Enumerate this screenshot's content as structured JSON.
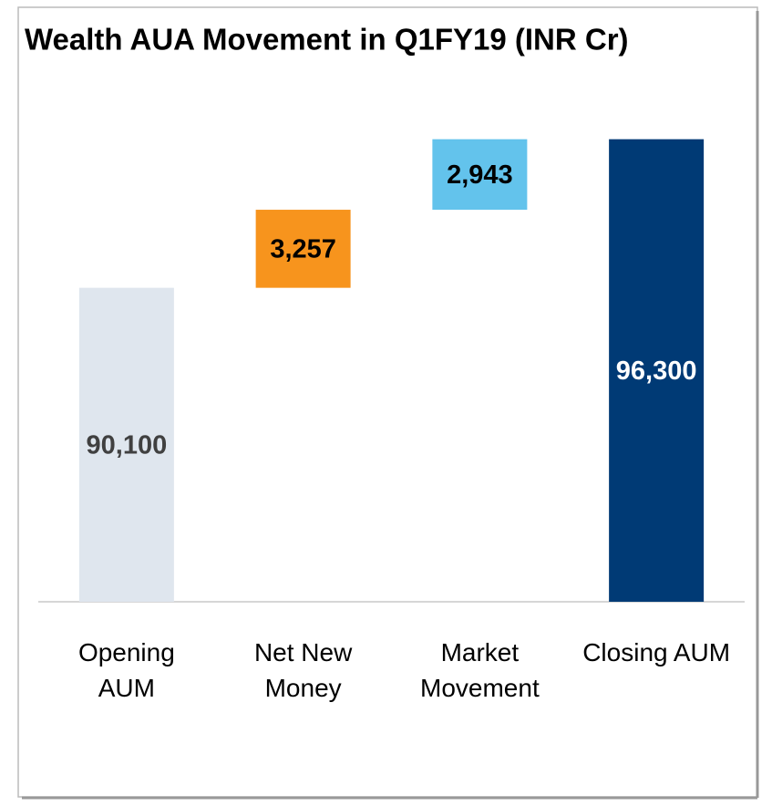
{
  "chart_data": {
    "type": "waterfall",
    "title": "Wealth AUA Movement in Q1FY19 (INR Cr)",
    "categories": [
      [
        "Opening",
        "AUM"
      ],
      [
        "Net New",
        "Money"
      ],
      [
        "Market",
        "Movement"
      ],
      [
        "Closing AUM"
      ]
    ],
    "values": [
      90100,
      3257,
      2943,
      96300
    ],
    "value_labels": [
      "90,100",
      "3,257",
      "2,943",
      "96,300"
    ],
    "colors": [
      "#dfe6ee",
      "#f7941d",
      "#63c3ec",
      "#003a75"
    ],
    "label_colors": [
      "#404040",
      "#000000",
      "#000000",
      "#ffffff"
    ],
    "ylim": [
      77000,
      98000
    ]
  }
}
